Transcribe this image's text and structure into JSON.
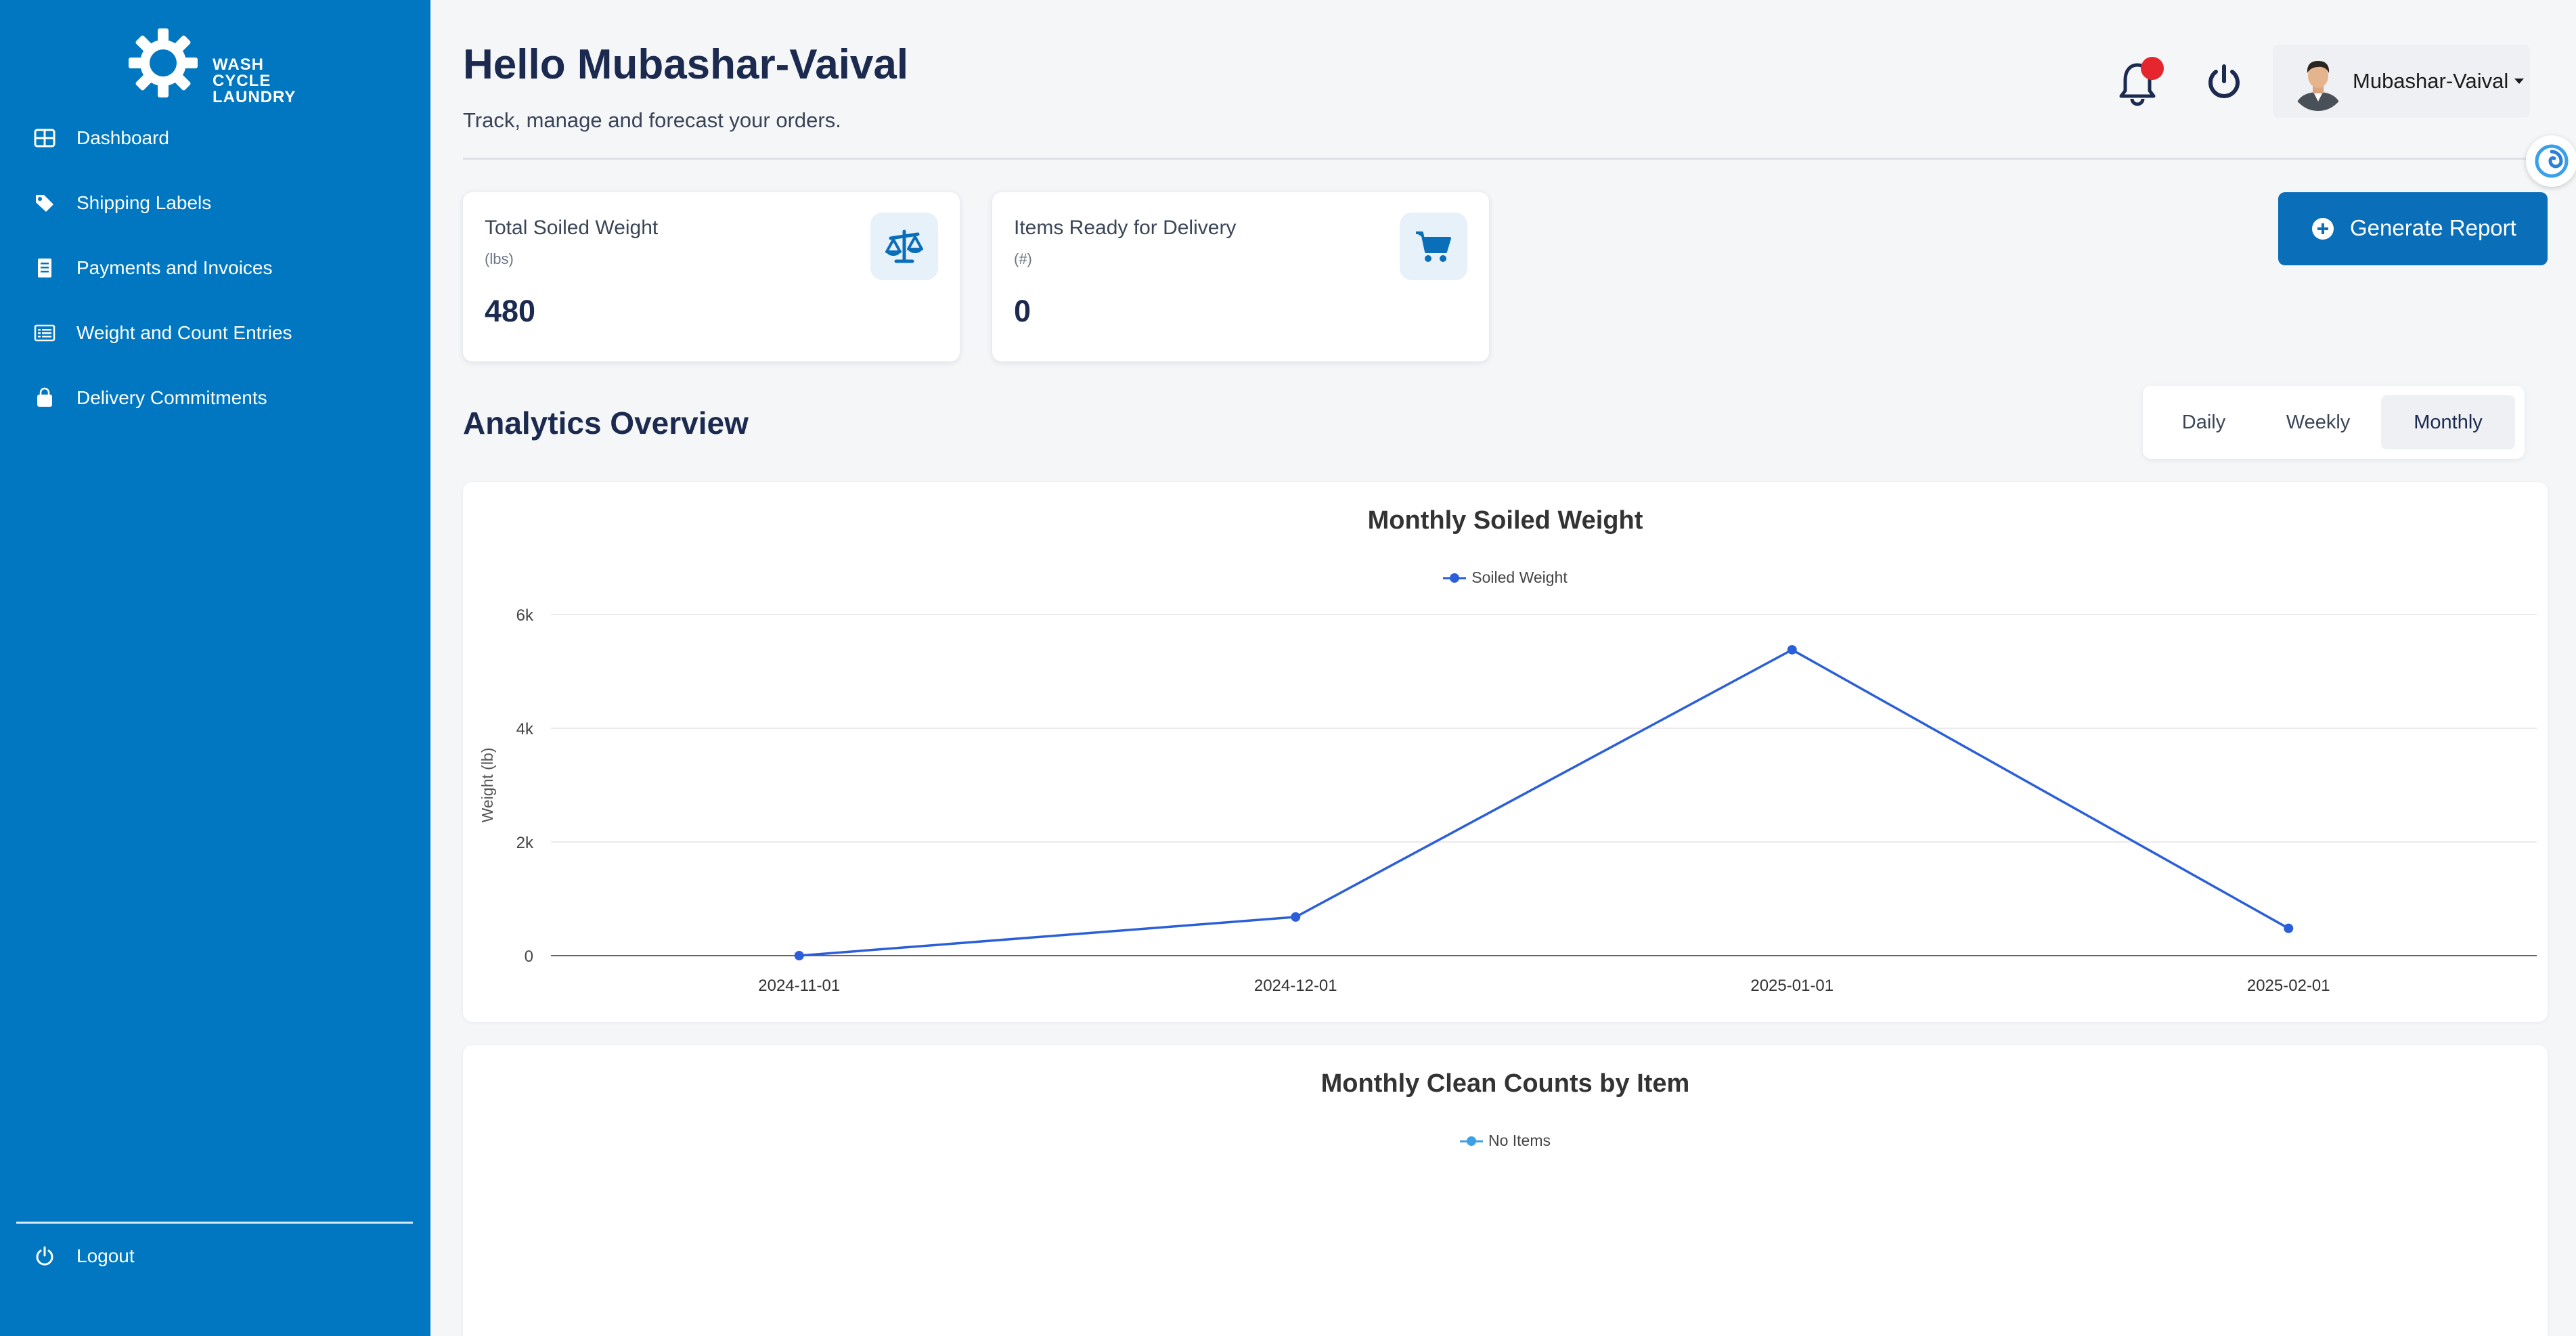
{
  "brand": {
    "line1": "WASH",
    "line2": "CYCLE",
    "line3": "LAUNDRY"
  },
  "sidebar": {
    "items": [
      {
        "label": "Dashboard",
        "icon": "dashboard-grid-icon"
      },
      {
        "label": "Shipping Labels",
        "icon": "tag-icon"
      },
      {
        "label": "Payments and Invoices",
        "icon": "invoice-icon"
      },
      {
        "label": "Weight and Count Entries",
        "icon": "list-icon"
      },
      {
        "label": "Delivery Commitments",
        "icon": "bag-icon"
      }
    ],
    "logout_label": "Logout"
  },
  "header": {
    "greeting": "Hello Mubashar-Vaival",
    "subtitle": "Track, manage and forecast your orders.",
    "user_name": "Mubashar-Vaival",
    "notification_dot_color": "#e5262f"
  },
  "cards": [
    {
      "title": "Total Soiled Weight",
      "unit": "(lbs)",
      "value": "480",
      "icon": "scale-icon"
    },
    {
      "title": "Items Ready for Delivery",
      "unit": "(#)",
      "value": "0",
      "icon": "cart-icon"
    }
  ],
  "actions": {
    "generate_report": "Generate Report"
  },
  "analytics": {
    "title": "Analytics Overview",
    "tabs": [
      "Daily",
      "Weekly",
      "Monthly"
    ],
    "active_tab": "Monthly"
  },
  "colors": {
    "sidebar": "#0077c0",
    "accent": "#0a6eb8",
    "line": "#2b5fd9",
    "line_light": "#3aa0e8"
  },
  "chart_data": [
    {
      "type": "line",
      "title": "Monthly Soiled Weight",
      "x": [
        "2024-11-01",
        "2024-12-01",
        "2025-01-01",
        "2025-02-01"
      ],
      "series": [
        {
          "name": "Soiled Weight",
          "values": [
            0,
            680,
            5380,
            480
          ]
        }
      ],
      "ylabel": "Weight (lb)",
      "ylim": [
        0,
        6000
      ],
      "yticks": [
        0,
        2000,
        4000,
        6000
      ],
      "ytick_labels": [
        "0",
        "2k",
        "4k",
        "6k"
      ],
      "grid": true,
      "legend": "top-center"
    },
    {
      "type": "line",
      "title": "Monthly Clean Counts by Item",
      "series": [
        {
          "name": "No Items",
          "values": []
        }
      ],
      "legend": "top-center"
    }
  ]
}
